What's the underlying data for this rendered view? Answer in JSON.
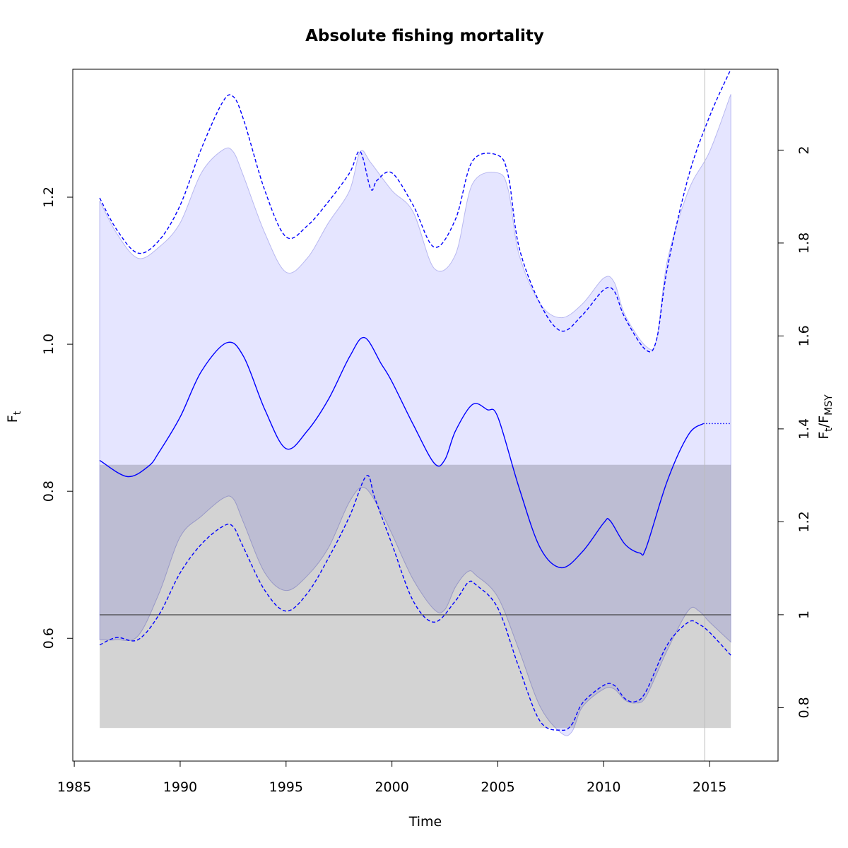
{
  "chart_data": {
    "type": "line",
    "title": "Absolute fishing mortality",
    "xlabel": "Time",
    "ylabel": {
      "main": "F",
      "sub": "t"
    },
    "y2label": {
      "main": "F",
      "sub": "t",
      "main2": "/F",
      "sub2": "MSY"
    },
    "xlim": [
      1984.93,
      2018.23
    ],
    "xticks": [
      1985,
      1990,
      1995,
      2000,
      2005,
      2010,
      2015
    ],
    "ylim": [
      0.433,
      1.374
    ],
    "yticks": [
      0.6,
      0.8,
      {
        "value": 1,
        "label": "1.0"
      },
      1.2
    ],
    "y2lim": [
      0.685,
      2.174
    ],
    "y2ticks": [
      0.8,
      1,
      1.2,
      1.4,
      1.6,
      1.8,
      2
    ],
    "fmsy": 0.632,
    "fmsy_ci": [
      0.478,
      0.836
    ],
    "vline": 2014.77,
    "band": {
      "color": "#e5e5ff",
      "upper": {
        "x": [
          1986.2,
          1987,
          1988,
          1989,
          1990,
          1991,
          1992,
          1992.5,
          1993,
          1994,
          1995,
          1996,
          1997,
          1998,
          1998.5,
          1999,
          2000,
          2001,
          2002,
          2003,
          2003.8,
          2005,
          2005.5,
          2006,
          2007,
          2008,
          2009,
          2010,
          2010.5,
          2011,
          2012,
          2012.5,
          2013,
          2014,
          2015,
          2016
        ],
        "values": [
          1.195,
          1.151,
          1.117,
          1.132,
          1.165,
          1.233,
          1.264,
          1.262,
          1.228,
          1.151,
          1.098,
          1.117,
          1.165,
          1.209,
          1.262,
          1.247,
          1.209,
          1.18,
          1.103,
          1.122,
          1.218,
          1.233,
          1.209,
          1.122,
          1.055,
          1.036,
          1.055,
          1.09,
          1.084,
          1.04,
          0.997,
          1.007,
          1.113,
          1.209,
          1.262,
          1.34
        ]
      },
      "lower": {
        "x": [
          1986.2,
          1987,
          1988,
          1989,
          1990,
          1991,
          1992,
          1992.5,
          1993,
          1994,
          1995,
          1996,
          1997,
          1998,
          1998.7,
          1999.5,
          2000,
          2001,
          2002,
          2002.5,
          2003,
          2003.6,
          2004,
          2005,
          2006,
          2007,
          2008,
          2008.5,
          2009,
          2010,
          2010.5,
          2011,
          2011.5,
          2012,
          2013,
          2014,
          2014.5,
          2015,
          2016
        ],
        "values": [
          0.598,
          0.598,
          0.603,
          0.661,
          0.738,
          0.766,
          0.79,
          0.79,
          0.757,
          0.689,
          0.665,
          0.685,
          0.723,
          0.786,
          0.805,
          0.771,
          0.742,
          0.68,
          0.639,
          0.639,
          0.67,
          0.691,
          0.685,
          0.656,
          0.584,
          0.507,
          0.471,
          0.473,
          0.507,
          0.531,
          0.531,
          0.516,
          0.512,
          0.521,
          0.584,
          0.638,
          0.637,
          0.622,
          0.595
        ]
      }
    },
    "series": [
      {
        "color": "#0000ff",
        "dash": "solid",
        "x": [
          1986.2,
          1987.5,
          1988.5,
          1989,
          1990,
          1991,
          1992.2,
          1993,
          1994,
          1995,
          1996,
          1997,
          1998,
          1998.7,
          1999.5,
          2000,
          2001,
          2002,
          2002.5,
          2003,
          2003.8,
          2004.5,
          2005,
          2006,
          2007,
          2008,
          2009,
          2010,
          2010.3,
          2011,
          2011.7,
          2012,
          2013,
          2014,
          2014.7
        ],
        "values": [
          0.842,
          0.82,
          0.834,
          0.853,
          0.901,
          0.963,
          1.002,
          0.983,
          0.911,
          0.858,
          0.882,
          0.925,
          0.983,
          1.009,
          0.973,
          0.949,
          0.891,
          0.838,
          0.843,
          0.882,
          0.918,
          0.911,
          0.901,
          0.805,
          0.723,
          0.696,
          0.718,
          0.757,
          0.76,
          0.728,
          0.716,
          0.723,
          0.814,
          0.877,
          0.892
        ]
      },
      {
        "color": "#0000ff",
        "dash": "dotted",
        "x": [
          2014.7,
          2016
        ],
        "values": [
          0.892,
          0.892
        ]
      },
      {
        "color": "#0000ff",
        "dash": "dashed",
        "x": [
          1986.2,
          1987,
          1988,
          1989,
          1990,
          1991,
          1992,
          1992.5,
          1993,
          1994,
          1995,
          1996,
          1997,
          1998,
          1998.5,
          1999,
          1999.3,
          2000,
          2001,
          2002,
          2003,
          2003.8,
          2005,
          2005.5,
          2006,
          2007,
          2008,
          2009,
          2010,
          2010.5,
          2011,
          2012,
          2012.5,
          2013,
          2014,
          2015,
          2016
        ],
        "values": [
          1.199,
          1.156,
          1.124,
          1.141,
          1.189,
          1.266,
          1.329,
          1.337,
          1.305,
          1.209,
          1.146,
          1.161,
          1.194,
          1.233,
          1.262,
          1.211,
          1.223,
          1.233,
          1.189,
          1.132,
          1.17,
          1.249,
          1.257,
          1.228,
          1.132,
          1.055,
          1.018,
          1.04,
          1.074,
          1.072,
          1.036,
          0.992,
          1.007,
          1.103,
          1.228,
          1.31,
          1.374
        ]
      },
      {
        "color": "#0000ff",
        "dash": "dashed",
        "x": [
          1986.2,
          1987,
          1988,
          1989,
          1990,
          1991,
          1992,
          1992.5,
          1993,
          1994,
          1995,
          1996,
          1997,
          1998,
          1998.8,
          1999.2,
          2000,
          2001,
          2002,
          2003,
          2003.6,
          2004,
          2005,
          2006,
          2007,
          2008,
          2008.5,
          2009,
          2010,
          2010.5,
          2011,
          2011.5,
          2012,
          2013,
          2014,
          2014.5,
          2015,
          2016
        ],
        "values": [
          0.591,
          0.601,
          0.598,
          0.632,
          0.689,
          0.728,
          0.752,
          0.752,
          0.723,
          0.665,
          0.637,
          0.661,
          0.709,
          0.766,
          0.821,
          0.79,
          0.728,
          0.651,
          0.622,
          0.651,
          0.676,
          0.672,
          0.641,
          0.56,
          0.487,
          0.475,
          0.483,
          0.512,
          0.536,
          0.536,
          0.518,
          0.514,
          0.528,
          0.591,
          0.622,
          0.619,
          0.608,
          0.577
        ]
      }
    ]
  }
}
